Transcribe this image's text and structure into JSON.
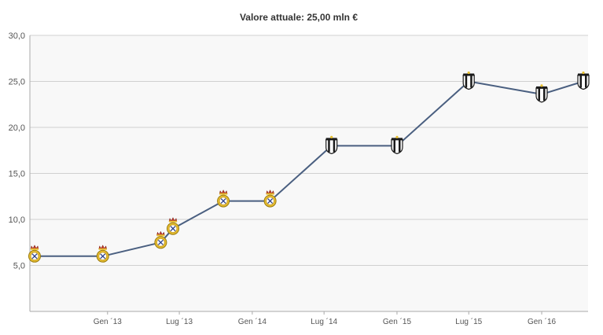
{
  "chart_data": {
    "type": "line",
    "title": "Valore attuale: 25,00 mln €",
    "xlabel": "",
    "ylabel": "",
    "ylim": [
      0,
      30
    ],
    "yticks": [
      {
        "value": 5,
        "label": "5,0"
      },
      {
        "value": 10,
        "label": "10,0"
      },
      {
        "value": 15,
        "label": "15,0"
      },
      {
        "value": 20,
        "label": "20,0"
      },
      {
        "value": 25,
        "label": "25,0"
      },
      {
        "value": 30,
        "label": "30,0"
      }
    ],
    "xlim": [
      "2012-07-01",
      "2016-04-15"
    ],
    "xticks": [
      {
        "date": "2013-01-01",
        "label": "Gen ´13"
      },
      {
        "date": "2013-07-01",
        "label": "Lug ´13"
      },
      {
        "date": "2014-01-01",
        "label": "Gen ´14"
      },
      {
        "date": "2014-07-01",
        "label": "Lug ´14"
      },
      {
        "date": "2015-01-01",
        "label": "Gen ´15"
      },
      {
        "date": "2015-07-01",
        "label": "Lug ´15"
      },
      {
        "date": "2016-01-01",
        "label": "Gen ´16"
      }
    ],
    "grid": true,
    "series": [
      {
        "color": "#4a5f80",
        "points": [
          {
            "date": "2012-07-01",
            "value": 6.0,
            "club": "Real Madrid"
          },
          {
            "date": "2012-12-20",
            "value": 6.0,
            "club": "Real Madrid"
          },
          {
            "date": "2013-05-15",
            "value": 7.5,
            "club": "Real Madrid"
          },
          {
            "date": "2013-06-15",
            "value": 9.0,
            "club": "Real Madrid"
          },
          {
            "date": "2013-10-20",
            "value": 12.0,
            "club": "Real Madrid"
          },
          {
            "date": "2014-02-15",
            "value": 12.0,
            "club": "Real Madrid"
          },
          {
            "date": "2014-07-20",
            "value": 18.0,
            "club": "Juventus"
          },
          {
            "date": "2015-01-01",
            "value": 18.0,
            "club": "Juventus"
          },
          {
            "date": "2015-07-01",
            "value": 25.0,
            "club": "Juventus"
          },
          {
            "date": "2016-01-01",
            "value": 23.6,
            "club": "Juventus"
          },
          {
            "date": "2016-04-15",
            "value": 25.0,
            "club": "Juventus"
          }
        ]
      }
    ],
    "marker_icons": {
      "Real Madrid": "real-madrid-crest-icon",
      "Juventus": "juventus-crest-icon"
    },
    "colors": {
      "plot_background": "#f8f8f8",
      "grid": "#d0d0d0",
      "axis": "#aaaaaa",
      "real_madrid_gold": "#e8c030",
      "real_madrid_crown": "#c0392b",
      "juventus_black": "#1a1a1a"
    }
  }
}
